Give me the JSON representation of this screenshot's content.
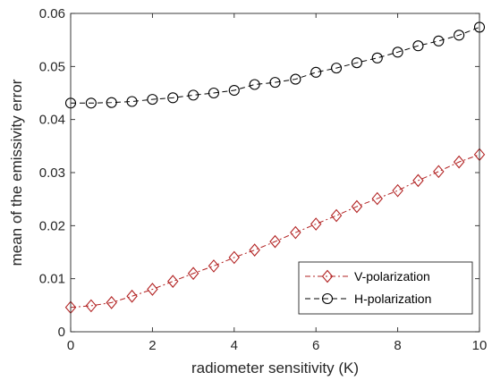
{
  "chart_data": {
    "type": "line",
    "xlabel": "radiometer sensitivity (K)",
    "ylabel": "mean of the emissivity error",
    "xlim": [
      0,
      10
    ],
    "ylim": [
      0,
      0.06
    ],
    "xticks": [
      0,
      2,
      4,
      6,
      8,
      10
    ],
    "yticks": [
      0,
      0.01,
      0.02,
      0.03,
      0.04,
      0.05,
      0.06
    ],
    "xtick_labels": [
      "0",
      "2",
      "4",
      "6",
      "8",
      "10"
    ],
    "ytick_labels": [
      "0",
      "0.01",
      "0.02",
      "0.03",
      "0.04",
      "0.05",
      "0.06"
    ],
    "grid": false,
    "legend_position": "bottom-right",
    "x": [
      0,
      0.5,
      1,
      1.5,
      2,
      2.5,
      3,
      3.5,
      4,
      4.5,
      5,
      5.5,
      6,
      6.5,
      7,
      7.5,
      8,
      8.5,
      9,
      9.5,
      10
    ],
    "series": [
      {
        "name": "V-polarization",
        "color": "#b22222",
        "marker": "diamond",
        "line_style": "dash-dot",
        "values": [
          0.0046,
          0.0049,
          0.0055,
          0.0067,
          0.008,
          0.0095,
          0.011,
          0.0124,
          0.014,
          0.0154,
          0.017,
          0.0187,
          0.0203,
          0.0219,
          0.0236,
          0.0251,
          0.0266,
          0.0285,
          0.0302,
          0.032,
          0.0334
        ]
      },
      {
        "name": "H-polarization",
        "color": "#000000",
        "marker": "circle",
        "line_style": "dashed",
        "values": [
          0.0431,
          0.0431,
          0.0432,
          0.0434,
          0.0438,
          0.0441,
          0.0446,
          0.045,
          0.0455,
          0.0466,
          0.047,
          0.0476,
          0.0489,
          0.0497,
          0.0507,
          0.0516,
          0.0527,
          0.0539,
          0.0548,
          0.0559,
          0.0574
        ]
      }
    ]
  }
}
